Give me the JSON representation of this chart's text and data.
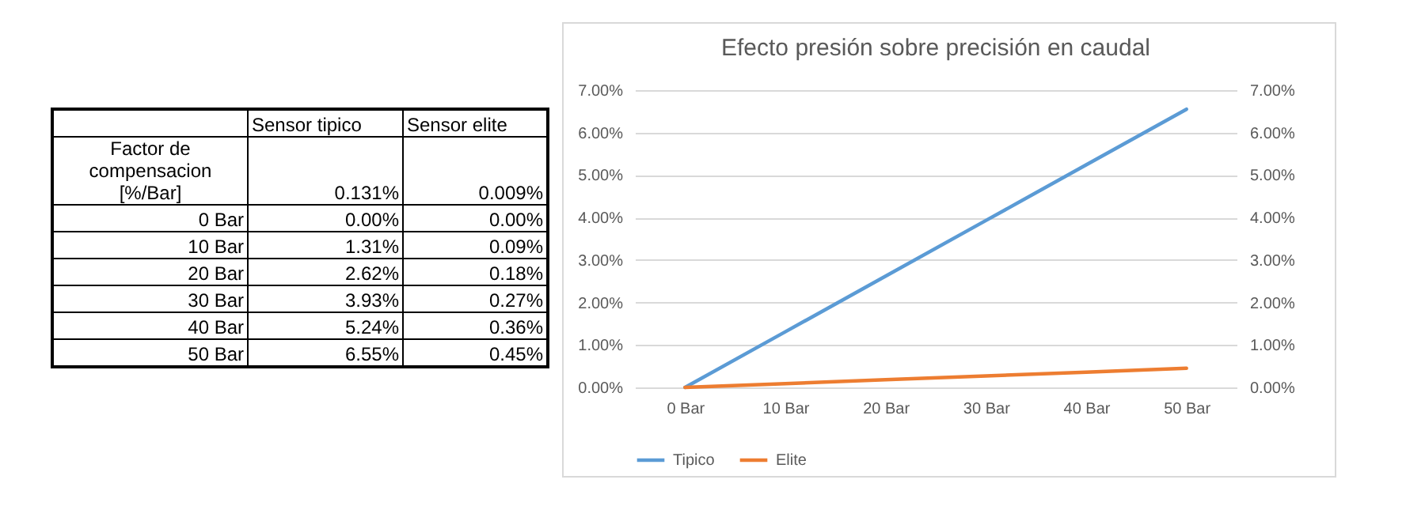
{
  "chart_data": {
    "type": "line",
    "title": "Efecto presión sobre precisión en caudal",
    "categories": [
      "0 Bar",
      "10 Bar",
      "20 Bar",
      "30 Bar",
      "40 Bar",
      "50 Bar"
    ],
    "series": [
      {
        "name": "Tipico",
        "color": "#5b9bd5",
        "values": [
          0,
          1.31,
          2.62,
          3.93,
          5.24,
          6.55
        ]
      },
      {
        "name": "Elite",
        "color": "#ed7d31",
        "values": [
          0,
          0.09,
          0.18,
          0.27,
          0.36,
          0.45
        ]
      }
    ],
    "ylim": [
      0,
      7
    ],
    "yticks": [
      {
        "value": 0,
        "label": "0.00%"
      },
      {
        "value": 1,
        "label": "1.00%"
      },
      {
        "value": 2,
        "label": "2.00%"
      },
      {
        "value": 3,
        "label": "3.00%"
      },
      {
        "value": 4,
        "label": "4.00%"
      },
      {
        "value": 5,
        "label": "5.00%"
      },
      {
        "value": 6,
        "label": "6.00%"
      },
      {
        "value": 7,
        "label": "7.00%"
      }
    ],
    "y2lim": [
      0,
      7
    ],
    "y2ticks": [
      {
        "value": 0,
        "label": "0.00%"
      },
      {
        "value": 1,
        "label": "1.00%"
      },
      {
        "value": 2,
        "label": "2.00%"
      },
      {
        "value": 3,
        "label": "3.00%"
      },
      {
        "value": 4,
        "label": "4.00%"
      },
      {
        "value": 5,
        "label": "5.00%"
      },
      {
        "value": 6,
        "label": "6.00%"
      },
      {
        "value": 7,
        "label": "7.00%"
      }
    ],
    "grid": "y",
    "legend": "bottom",
    "line_style": "solid",
    "marker": "none",
    "annotations": [
      "Sensor tipico",
      "Sensor elite",
      "Factor de compensacion [%/Bar]",
      "0.131%",
      "0.009%",
      "0 Bar",
      "0.00%",
      "0.00%",
      "10 Bar",
      "1.31%",
      "0.09%",
      "20 Bar",
      "2.62%",
      "0.18%",
      "30 Bar",
      "3.93%",
      "0.27%",
      "40 Bar",
      "5.24%",
      "0.36%",
      "50 Bar",
      "6.55%",
      "0.45%"
    ]
  }
}
